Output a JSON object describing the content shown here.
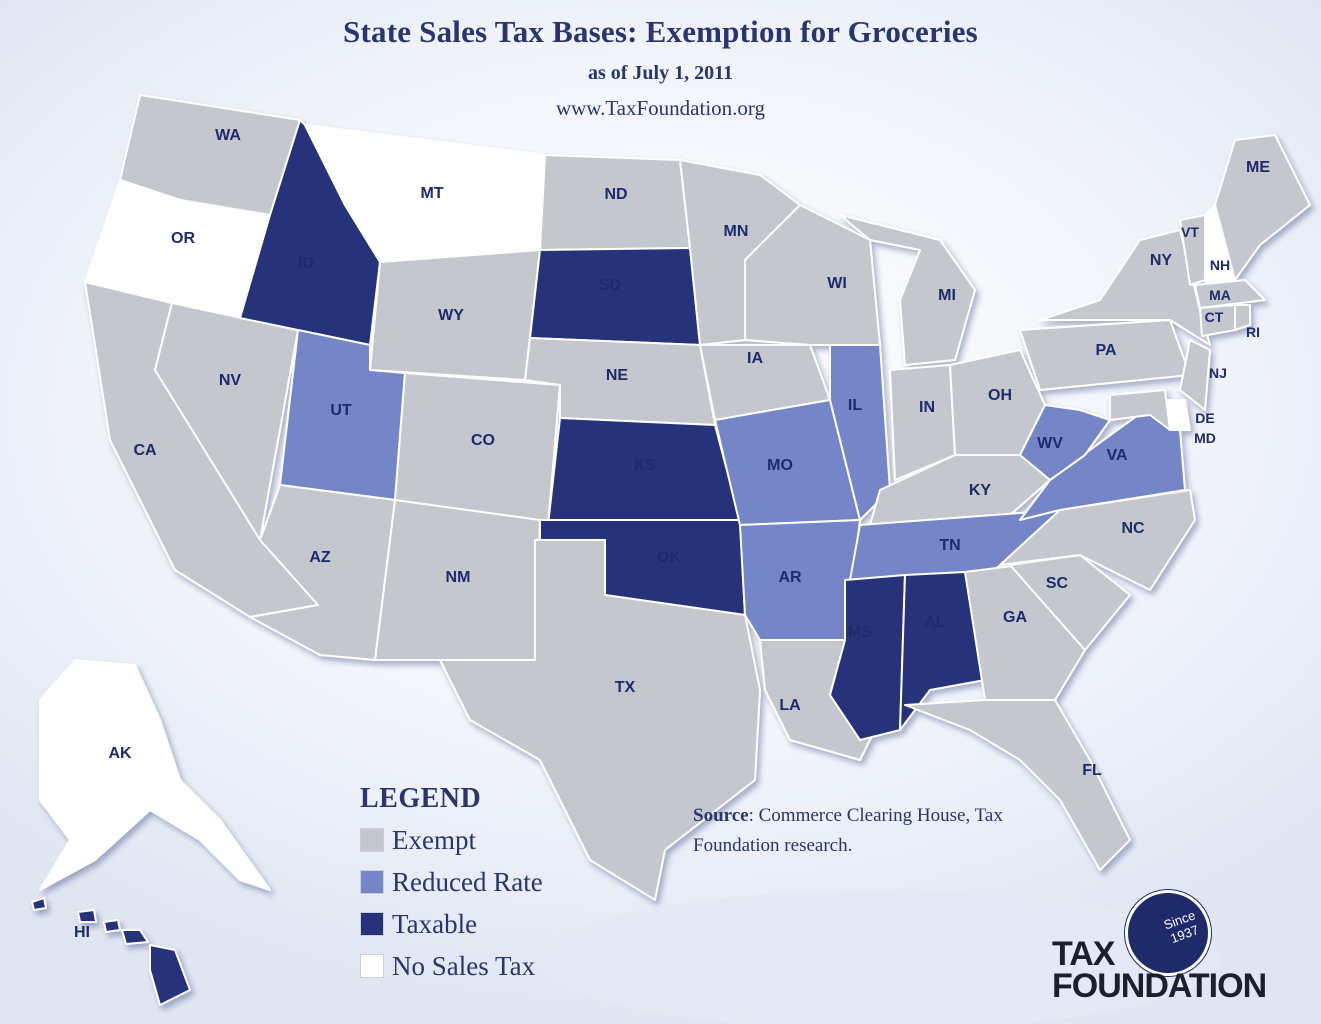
{
  "title": "State Sales Tax Bases: Exemption for Groceries",
  "subtitle": "as of July 1, 2011",
  "website": "www.TaxFoundation.org",
  "colors": {
    "exempt": "#c4c8ce",
    "reduced": "#7586c8",
    "taxable": "#26317a",
    "no_sales_tax": "#ffffff",
    "text": "#2a3470"
  },
  "legend": {
    "title": "LEGEND",
    "items": [
      {
        "key": "exempt",
        "label": "Exempt"
      },
      {
        "key": "reduced",
        "label": "Reduced Rate"
      },
      {
        "key": "taxable",
        "label": "Taxable"
      },
      {
        "key": "no_sales_tax",
        "label": "No Sales Tax"
      }
    ]
  },
  "source": {
    "label": "Source",
    "text": ": Commerce Clearing House, Tax Foundation research."
  },
  "logo": {
    "line1": "TAX",
    "line2": "FOUNDATION",
    "seal_line1": "Since",
    "seal_line2": "1937"
  },
  "states": [
    {
      "abbr": "WA",
      "category": "exempt"
    },
    {
      "abbr": "OR",
      "category": "no_sales_tax"
    },
    {
      "abbr": "CA",
      "category": "exempt"
    },
    {
      "abbr": "NV",
      "category": "exempt"
    },
    {
      "abbr": "ID",
      "category": "taxable"
    },
    {
      "abbr": "MT",
      "category": "no_sales_tax"
    },
    {
      "abbr": "WY",
      "category": "exempt"
    },
    {
      "abbr": "UT",
      "category": "reduced"
    },
    {
      "abbr": "AZ",
      "category": "exempt"
    },
    {
      "abbr": "CO",
      "category": "exempt"
    },
    {
      "abbr": "NM",
      "category": "exempt"
    },
    {
      "abbr": "ND",
      "category": "exempt"
    },
    {
      "abbr": "SD",
      "category": "taxable"
    },
    {
      "abbr": "NE",
      "category": "exempt"
    },
    {
      "abbr": "KS",
      "category": "taxable"
    },
    {
      "abbr": "OK",
      "category": "taxable"
    },
    {
      "abbr": "TX",
      "category": "exempt"
    },
    {
      "abbr": "MN",
      "category": "exempt"
    },
    {
      "abbr": "IA",
      "category": "exempt"
    },
    {
      "abbr": "MO",
      "category": "reduced"
    },
    {
      "abbr": "AR",
      "category": "reduced"
    },
    {
      "abbr": "LA",
      "category": "exempt"
    },
    {
      "abbr": "WI",
      "category": "exempt"
    },
    {
      "abbr": "IL",
      "category": "reduced"
    },
    {
      "abbr": "MI",
      "category": "exempt"
    },
    {
      "abbr": "IN",
      "category": "exempt"
    },
    {
      "abbr": "OH",
      "category": "exempt"
    },
    {
      "abbr": "KY",
      "category": "exempt"
    },
    {
      "abbr": "TN",
      "category": "reduced"
    },
    {
      "abbr": "MS",
      "category": "taxable"
    },
    {
      "abbr": "AL",
      "category": "taxable"
    },
    {
      "abbr": "GA",
      "category": "exempt"
    },
    {
      "abbr": "FL",
      "category": "exempt"
    },
    {
      "abbr": "SC",
      "category": "exempt"
    },
    {
      "abbr": "NC",
      "category": "exempt"
    },
    {
      "abbr": "VA",
      "category": "reduced"
    },
    {
      "abbr": "WV",
      "category": "reduced"
    },
    {
      "abbr": "PA",
      "category": "exempt"
    },
    {
      "abbr": "NY",
      "category": "exempt"
    },
    {
      "abbr": "NJ",
      "category": "exempt"
    },
    {
      "abbr": "DE",
      "category": "no_sales_tax"
    },
    {
      "abbr": "MD",
      "category": "exempt"
    },
    {
      "abbr": "CT",
      "category": "exempt"
    },
    {
      "abbr": "RI",
      "category": "exempt"
    },
    {
      "abbr": "MA",
      "category": "exempt"
    },
    {
      "abbr": "VT",
      "category": "exempt"
    },
    {
      "abbr": "NH",
      "category": "no_sales_tax"
    },
    {
      "abbr": "ME",
      "category": "exempt"
    },
    {
      "abbr": "AK",
      "category": "no_sales_tax"
    },
    {
      "abbr": "HI",
      "category": "taxable"
    }
  ]
}
